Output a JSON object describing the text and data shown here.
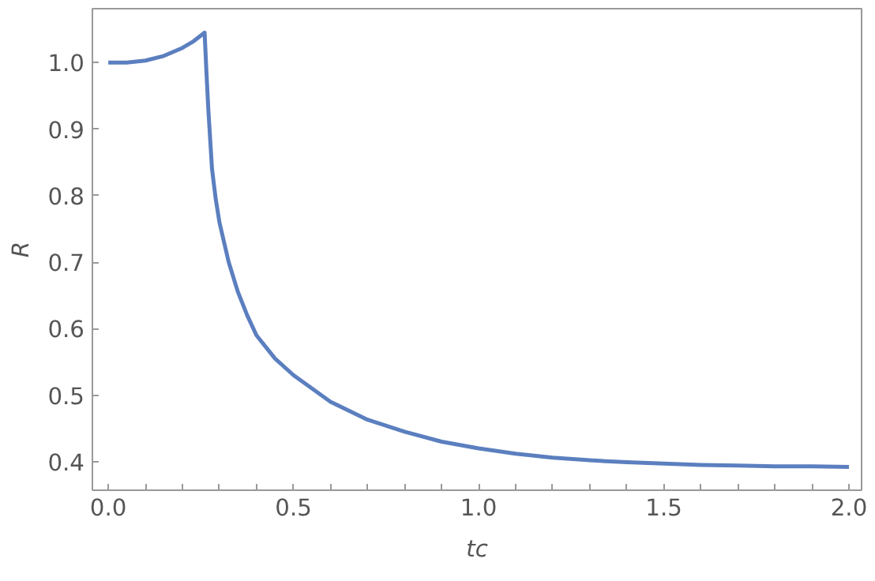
{
  "chart_data": {
    "type": "line",
    "xlabel": "tc",
    "ylabel": "R",
    "x": [
      0.0,
      0.05,
      0.1,
      0.15,
      0.2,
      0.23,
      0.26,
      0.265,
      0.27,
      0.28,
      0.29,
      0.3,
      0.325,
      0.35,
      0.375,
      0.4,
      0.45,
      0.5,
      0.6,
      0.7,
      0.8,
      0.9,
      1.0,
      1.1,
      1.2,
      1.3,
      1.4,
      1.5,
      1.6,
      1.7,
      1.8,
      1.9,
      2.0
    ],
    "series": [
      {
        "color": "#5b7fbf",
        "values": [
          1.0,
          1.0,
          1.003,
          1.01,
          1.022,
          1.032,
          1.045,
          0.985,
          0.93,
          0.84,
          0.795,
          0.76,
          0.7,
          0.655,
          0.62,
          0.59,
          0.555,
          0.53,
          0.49,
          0.463,
          0.445,
          0.43,
          0.42,
          0.412,
          0.406,
          0.402,
          0.399,
          0.397,
          0.395,
          0.394,
          0.393,
          0.393,
          0.392
        ]
      }
    ],
    "xlim": [
      -0.043,
      2.034
    ],
    "ylim": [
      0.357,
      1.081
    ],
    "xticks": [
      {
        "value": 0.0,
        "label": "0.0"
      },
      {
        "value": 0.1,
        "label": null
      },
      {
        "value": 0.2,
        "label": null
      },
      {
        "value": 0.3,
        "label": null
      },
      {
        "value": 0.4,
        "label": null
      },
      {
        "value": 0.5,
        "label": "0.5"
      },
      {
        "value": 0.6,
        "label": null
      },
      {
        "value": 0.7,
        "label": null
      },
      {
        "value": 0.8,
        "label": null
      },
      {
        "value": 0.9,
        "label": null
      },
      {
        "value": 1.0,
        "label": "1.0"
      },
      {
        "value": 1.1,
        "label": null
      },
      {
        "value": 1.2,
        "label": null
      },
      {
        "value": 1.3,
        "label": null
      },
      {
        "value": 1.4,
        "label": null
      },
      {
        "value": 1.5,
        "label": "1.5"
      },
      {
        "value": 1.6,
        "label": null
      },
      {
        "value": 1.7,
        "label": null
      },
      {
        "value": 1.8,
        "label": null
      },
      {
        "value": 1.9,
        "label": null
      },
      {
        "value": 2.0,
        "label": "2.0"
      }
    ],
    "yticks": [
      {
        "value": 0.4,
        "label": "0.4"
      },
      {
        "value": 0.5,
        "label": "0.5"
      },
      {
        "value": 0.6,
        "label": "0.6"
      },
      {
        "value": 0.7,
        "label": "0.7"
      },
      {
        "value": 0.8,
        "label": "0.8"
      },
      {
        "value": 0.9,
        "label": "0.9"
      },
      {
        "value": 1.0,
        "label": "1.0"
      }
    ],
    "grid": false,
    "line_style": "solid",
    "marker": "none"
  }
}
